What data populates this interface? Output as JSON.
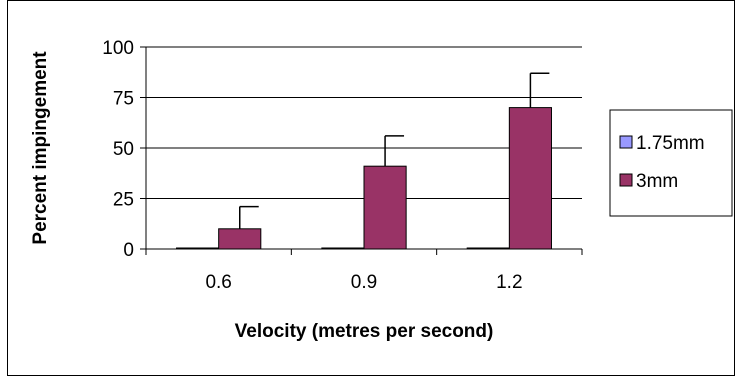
{
  "chart_data": {
    "type": "bar",
    "categories": [
      "0.6",
      "0.9",
      "1.2"
    ],
    "series": [
      {
        "name": "1.75mm",
        "color": "#9999ff",
        "values": [
          0.5,
          0.5,
          0.5
        ],
        "error": [
          0,
          0,
          0
        ]
      },
      {
        "name": "3mm",
        "color": "#993366",
        "values": [
          10,
          41,
          70
        ],
        "error": [
          11,
          15,
          17
        ]
      }
    ],
    "xlabel": "Velocity (metres per second)",
    "ylabel": "Percent impingement",
    "ylim": [
      0,
      100
    ],
    "yticks": [
      "0",
      "25",
      "50",
      "75",
      "100"
    ],
    "grid": true,
    "legend_position": "right"
  }
}
